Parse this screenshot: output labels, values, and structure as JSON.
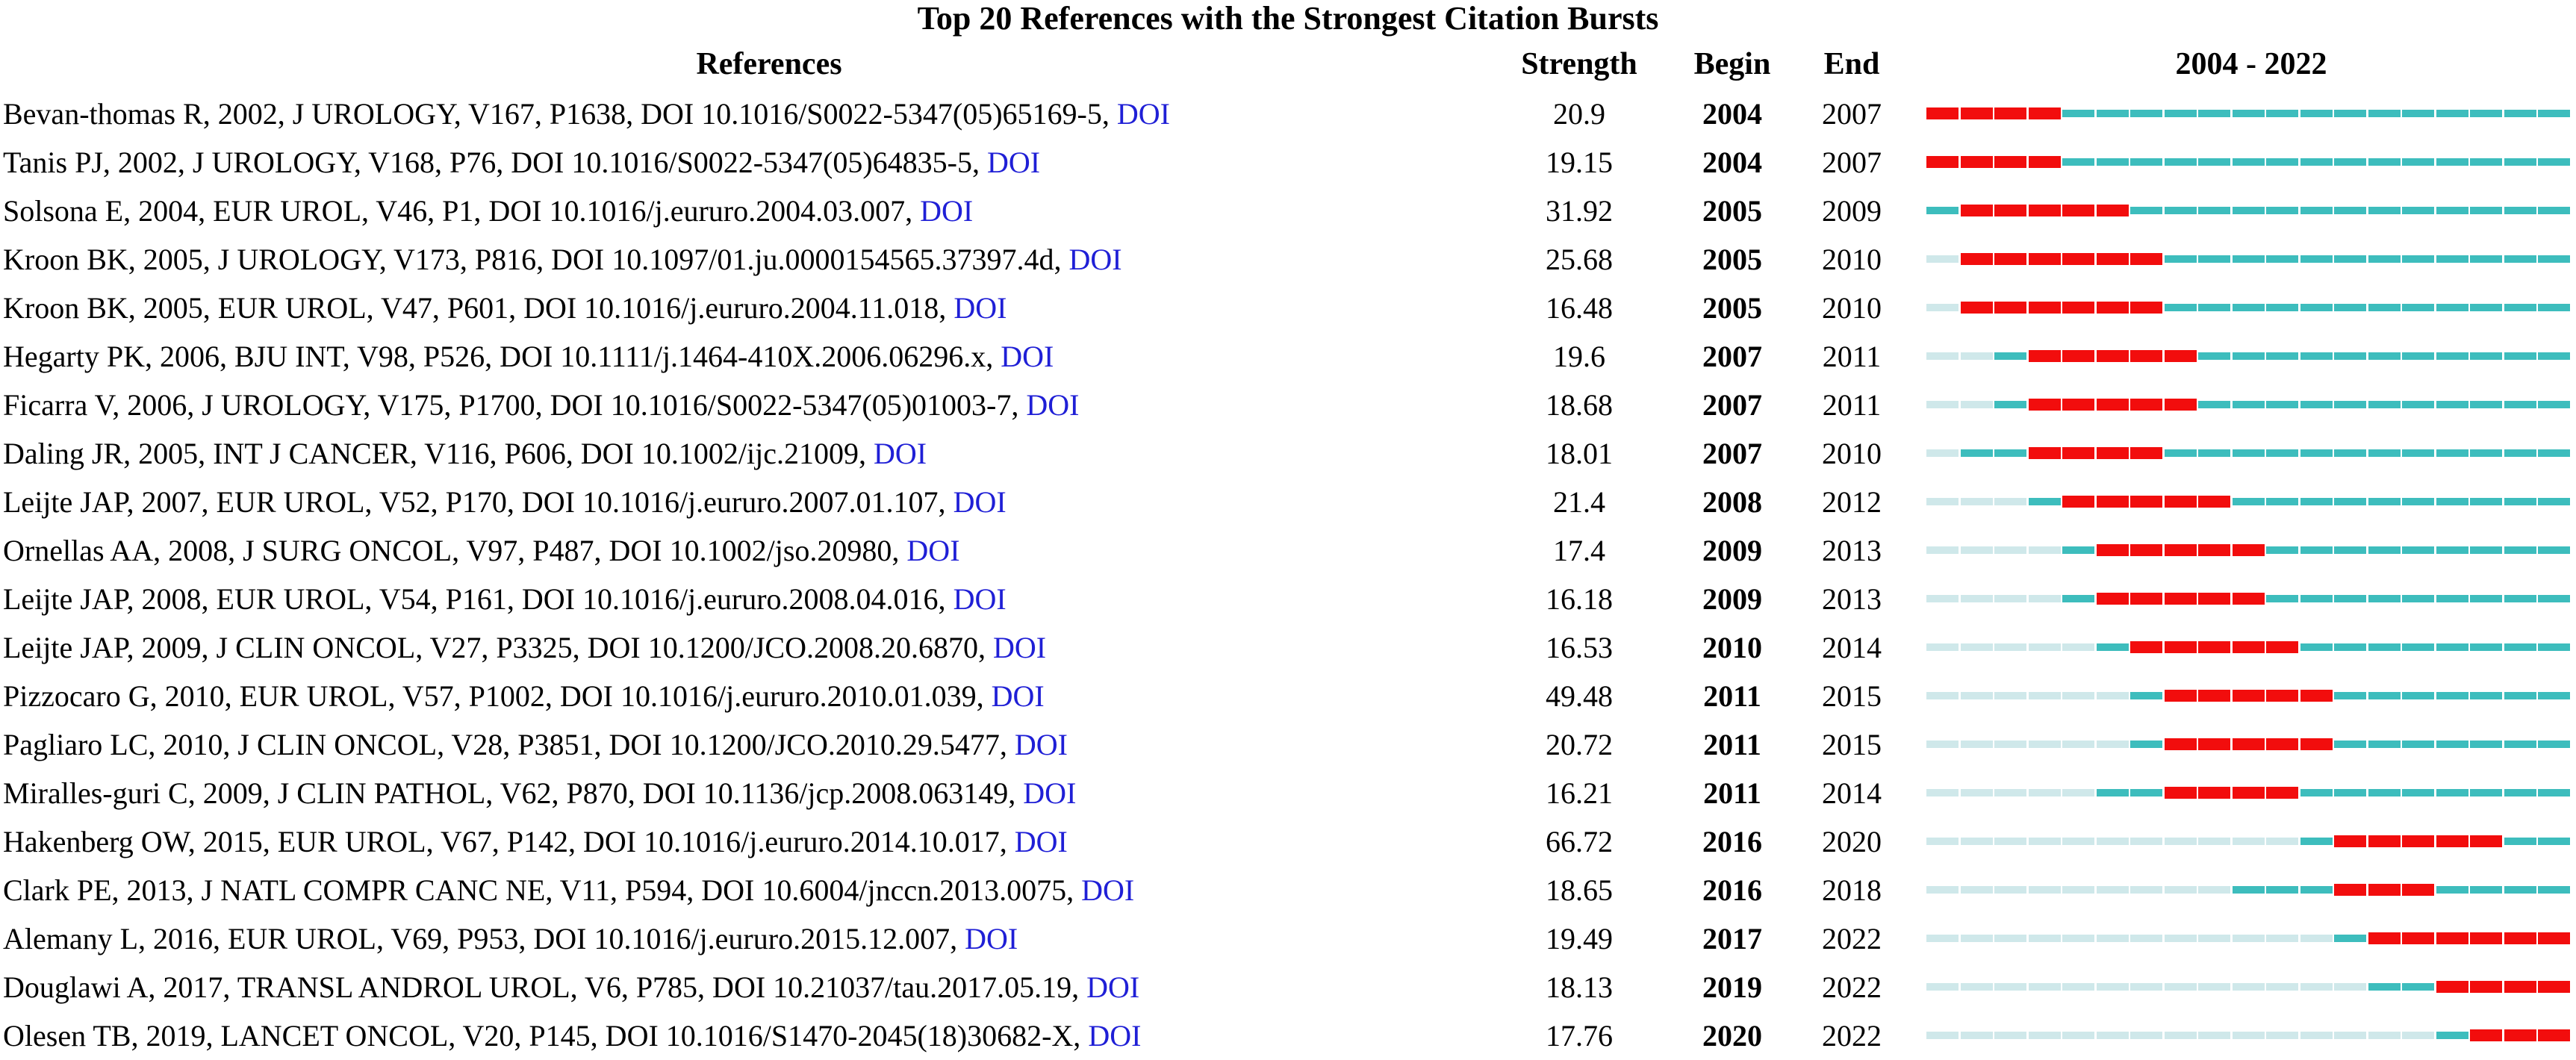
{
  "colors": {
    "burst": "#f20d0d",
    "cited": "#3dbdbd",
    "not_yet": "#cfe8ea",
    "doi_link": "#1f1fd6"
  },
  "chart_data": {
    "type": "table",
    "title": "Top 20 References with the Strongest Citation Bursts",
    "headers": {
      "references": "References",
      "strength": "Strength",
      "begin": "Begin",
      "end": "End",
      "timeline": "2004 - 2022"
    },
    "year_range": [
      2004,
      2022
    ],
    "rows": [
      {
        "ref": "Bevan-thomas R, 2002, J UROLOGY, V167, P1638, DOI 10.1016/S0022-5347(05)65169-5,",
        "doi": "DOI",
        "strength": "20.9",
        "begin": "2004",
        "end": "2007",
        "start": 2004,
        "burst_begin": 2004,
        "burst_end": 2007
      },
      {
        "ref": "Tanis PJ, 2002, J UROLOGY, V168, P76, DOI 10.1016/S0022-5347(05)64835-5,",
        "doi": "DOI",
        "strength": "19.15",
        "begin": "2004",
        "end": "2007",
        "start": 2004,
        "burst_begin": 2004,
        "burst_end": 2007
      },
      {
        "ref": "Solsona E, 2004, EUR UROL, V46, P1, DOI 10.1016/j.eururo.2004.03.007,",
        "doi": "DOI",
        "strength": "31.92",
        "begin": "2005",
        "end": "2009",
        "start": 2004,
        "burst_begin": 2005,
        "burst_end": 2009
      },
      {
        "ref": "Kroon BK, 2005, J UROLOGY, V173, P816, DOI 10.1097/01.ju.0000154565.37397.4d,",
        "doi": "DOI",
        "strength": "25.68",
        "begin": "2005",
        "end": "2010",
        "start": 2005,
        "burst_begin": 2005,
        "burst_end": 2010
      },
      {
        "ref": "Kroon BK, 2005, EUR UROL, V47, P601, DOI 10.1016/j.eururo.2004.11.018,",
        "doi": "DOI",
        "strength": "16.48",
        "begin": "2005",
        "end": "2010",
        "start": 2005,
        "burst_begin": 2005,
        "burst_end": 2010
      },
      {
        "ref": "Hegarty PK, 2006, BJU INT, V98, P526, DOI 10.1111/j.1464-410X.2006.06296.x,",
        "doi": "DOI",
        "strength": "19.6",
        "begin": "2007",
        "end": "2011",
        "start": 2006,
        "burst_begin": 2007,
        "burst_end": 2011
      },
      {
        "ref": "Ficarra V, 2006, J UROLOGY, V175, P1700, DOI 10.1016/S0022-5347(05)01003-7,",
        "doi": "DOI",
        "strength": "18.68",
        "begin": "2007",
        "end": "2011",
        "start": 2006,
        "burst_begin": 2007,
        "burst_end": 2011
      },
      {
        "ref": "Daling JR, 2005, INT J CANCER, V116, P606, DOI 10.1002/ijc.21009,",
        "doi": "DOI",
        "strength": "18.01",
        "begin": "2007",
        "end": "2010",
        "start": 2005,
        "burst_begin": 2007,
        "burst_end": 2010
      },
      {
        "ref": "Leijte JAP, 2007, EUR UROL, V52, P170, DOI 10.1016/j.eururo.2007.01.107,",
        "doi": "DOI",
        "strength": "21.4",
        "begin": "2008",
        "end": "2012",
        "start": 2007,
        "burst_begin": 2008,
        "burst_end": 2012
      },
      {
        "ref": "Ornellas AA, 2008, J SURG ONCOL, V97, P487, DOI 10.1002/jso.20980,",
        "doi": "DOI",
        "strength": "17.4",
        "begin": "2009",
        "end": "2013",
        "start": 2008,
        "burst_begin": 2009,
        "burst_end": 2013
      },
      {
        "ref": "Leijte JAP, 2008, EUR UROL, V54, P161, DOI 10.1016/j.eururo.2008.04.016,",
        "doi": "DOI",
        "strength": "16.18",
        "begin": "2009",
        "end": "2013",
        "start": 2008,
        "burst_begin": 2009,
        "burst_end": 2013
      },
      {
        "ref": "Leijte JAP, 2009, J CLIN ONCOL, V27, P3325, DOI 10.1200/JCO.2008.20.6870,",
        "doi": "DOI",
        "strength": "16.53",
        "begin": "2010",
        "end": "2014",
        "start": 2009,
        "burst_begin": 2010,
        "burst_end": 2014
      },
      {
        "ref": "Pizzocaro G, 2010, EUR UROL, V57, P1002, DOI 10.1016/j.eururo.2010.01.039,",
        "doi": "DOI",
        "strength": "49.48",
        "begin": "2011",
        "end": "2015",
        "start": 2010,
        "burst_begin": 2011,
        "burst_end": 2015
      },
      {
        "ref": "Pagliaro LC, 2010, J CLIN ONCOL, V28, P3851, DOI 10.1200/JCO.2010.29.5477,",
        "doi": "DOI",
        "strength": "20.72",
        "begin": "2011",
        "end": "2015",
        "start": 2010,
        "burst_begin": 2011,
        "burst_end": 2015
      },
      {
        "ref": "Miralles-guri C, 2009, J CLIN PATHOL, V62, P870, DOI 10.1136/jcp.2008.063149,",
        "doi": "DOI",
        "strength": "16.21",
        "begin": "2011",
        "end": "2014",
        "start": 2009,
        "burst_begin": 2011,
        "burst_end": 2014
      },
      {
        "ref": "Hakenberg OW, 2015, EUR UROL, V67, P142, DOI 10.1016/j.eururo.2014.10.017,",
        "doi": "DOI",
        "strength": "66.72",
        "begin": "2016",
        "end": "2020",
        "start": 2015,
        "burst_begin": 2016,
        "burst_end": 2020
      },
      {
        "ref": "Clark PE, 2013, J NATL COMPR CANC NE, V11, P594, DOI 10.6004/jnccn.2013.0075,",
        "doi": "DOI",
        "strength": "18.65",
        "begin": "2016",
        "end": "2018",
        "start": 2013,
        "burst_begin": 2016,
        "burst_end": 2018
      },
      {
        "ref": "Alemany L, 2016, EUR UROL, V69, P953, DOI 10.1016/j.eururo.2015.12.007,",
        "doi": "DOI",
        "strength": "19.49",
        "begin": "2017",
        "end": "2022",
        "start": 2016,
        "burst_begin": 2017,
        "burst_end": 2022
      },
      {
        "ref": "Douglawi A, 2017, TRANSL ANDROL UROL, V6, P785, DOI 10.21037/tau.2017.05.19,",
        "doi": "DOI",
        "strength": "18.13",
        "begin": "2019",
        "end": "2022",
        "start": 2017,
        "burst_begin": 2019,
        "burst_end": 2022
      },
      {
        "ref": "Olesen TB, 2019, LANCET ONCOL, V20, P145, DOI 10.1016/S1470-2045(18)30682-X,",
        "doi": "DOI",
        "strength": "17.76",
        "begin": "2020",
        "end": "2022",
        "start": 2019,
        "burst_begin": 2020,
        "burst_end": 2022
      }
    ]
  }
}
